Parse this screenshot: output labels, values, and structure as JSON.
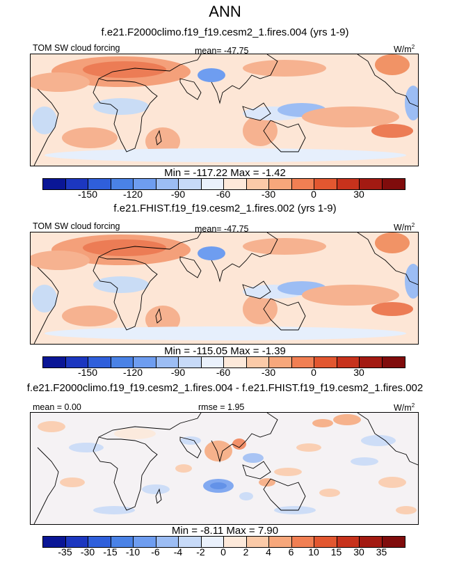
{
  "title": "ANN",
  "units_label": "W/m",
  "units_exp": "2",
  "panels": [
    {
      "id": "top",
      "subtitle": "f.e21.F2000climo.f19_f19.cesm2_1.fires.004 (yrs 1-9)",
      "left_label": "TOM SW cloud forcing",
      "stat_label": "mean= -47.75",
      "minmax": "Min = -117.22 Max =  -1.42"
    },
    {
      "id": "middle",
      "subtitle": "f.e21.FHIST.f19_f19.cesm2_1.fires.002 (yrs 1-9)",
      "left_label": "TOM SW cloud forcing",
      "stat_label": "mean= -47.75",
      "minmax": "Min = -115.05 Max =  -1.39"
    },
    {
      "id": "difference",
      "subtitle": "f.e21.F2000climo.f19_f19.cesm2_1.fires.004 - f.e21.FHIST.f19_f19.cesm2_1.fires.002",
      "left_label": "mean =   0.00",
      "stat_label": "rmse =   1.95",
      "minmax": "Min =  -8.11 Max =   7.90"
    }
  ],
  "colorbar_colors": [
    "#0a1696",
    "#1c37c0",
    "#2f5fdb",
    "#4a82e6",
    "#6e9df0",
    "#9cbdf4",
    "#c7daf8",
    "#eaf1fc",
    "#fde9da",
    "#fbcaa8",
    "#f7a77b",
    "#f17f53",
    "#e25730",
    "#c7321c",
    "#a31a12",
    "#800c0c"
  ],
  "chart_data": [
    {
      "type": "heatmap",
      "title": "f.e21.F2000climo.f19_f19.cesm2_1.fires.004 (yrs 1-9)",
      "variable": "TOM SW cloud forcing",
      "units": "W/m2",
      "season": "ANN",
      "mean": -47.75,
      "min": -117.22,
      "max": -1.42,
      "colorbar_levels": [
        -165,
        -150,
        -135,
        -120,
        -105,
        -90,
        -75,
        -60,
        -45,
        -30,
        -15,
        0,
        15,
        30,
        45
      ],
      "tick_labels": [
        "-150",
        "-120",
        "-90",
        "-60",
        "-30",
        "0",
        "30"
      ]
    },
    {
      "type": "heatmap",
      "title": "f.e21.FHIST.f19_f19.cesm2_1.fires.002 (yrs 1-9)",
      "variable": "TOM SW cloud forcing",
      "units": "W/m2",
      "season": "ANN",
      "mean": -47.75,
      "min": -115.05,
      "max": -1.39,
      "colorbar_levels": [
        -165,
        -150,
        -135,
        -120,
        -105,
        -90,
        -75,
        -60,
        -45,
        -30,
        -15,
        0,
        15,
        30,
        45
      ],
      "tick_labels": [
        "-150",
        "-120",
        "-90",
        "-60",
        "-30",
        "0",
        "30"
      ]
    },
    {
      "type": "heatmap",
      "title": "f.e21.F2000climo.f19_f19.cesm2_1.fires.004 - f.e21.FHIST.f19_f19.cesm2_1.fires.002",
      "units": "W/m2",
      "mean": 0.0,
      "rmse": 1.95,
      "min": -8.11,
      "max": 7.9,
      "colorbar_levels": [
        -40,
        -35,
        -30,
        -15,
        -10,
        -6,
        -4,
        -2,
        0,
        2,
        4,
        6,
        10,
        15,
        30,
        35,
        40
      ],
      "tick_labels": [
        "-35",
        "-30",
        "-15",
        "-10",
        "-6",
        "-4",
        "-2",
        "0",
        "2",
        "4",
        "6",
        "10",
        "15",
        "30",
        "35"
      ]
    }
  ]
}
